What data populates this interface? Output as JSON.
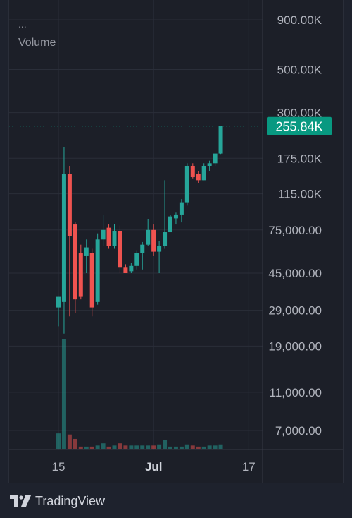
{
  "legend": {
    "ellipsis": "...",
    "label": "Volume"
  },
  "branding": {
    "logo_text": "TradingView"
  },
  "colors": {
    "up": "#26a69a",
    "down": "#ef5350",
    "price_tag_bg": "#089981",
    "background": "#1c1f28",
    "grid": "#2a2e39",
    "axis_text": "#b2b5be"
  },
  "chart_data": {
    "type": "candlestick",
    "title": "",
    "xlabel": "",
    "ylabel": "",
    "scale": "log",
    "ylim": [
      5500,
      1100000
    ],
    "grid": true,
    "current_price_label": "255.84K",
    "current_price_value": 255840,
    "y_ticks": [
      {
        "label": "900.00K",
        "value": 900000
      },
      {
        "label": "500.00K",
        "value": 500000
      },
      {
        "label": "300.00K",
        "value": 300000
      },
      {
        "label": "175.00K",
        "value": 175000
      },
      {
        "label": "115.00K",
        "value": 115000
      },
      {
        "label": "75,000.00",
        "value": 75000
      },
      {
        "label": "45,000.00",
        "value": 45000
      },
      {
        "label": "29,000.00",
        "value": 29000
      },
      {
        "label": "19,000.00",
        "value": 19000
      },
      {
        "label": "11,000.00",
        "value": 11000
      },
      {
        "label": "7,000.00",
        "value": 7000
      }
    ],
    "x_ticks": [
      {
        "label": "15",
        "index": 0,
        "bold": false
      },
      {
        "label": "Jul",
        "index": 17,
        "bold": true
      },
      {
        "label": "17",
        "index": 34,
        "bold": false
      }
    ],
    "candles": [
      {
        "o": 30000,
        "h": 34000,
        "l": 24000,
        "c": 34000,
        "v": 14
      },
      {
        "o": 32000,
        "h": 200000,
        "l": 22000,
        "c": 145000,
        "v": 100
      },
      {
        "o": 145000,
        "h": 160000,
        "l": 27000,
        "c": 70000,
        "v": 13
      },
      {
        "o": 80000,
        "h": 82000,
        "l": 28000,
        "c": 33000,
        "v": 9
      },
      {
        "o": 57000,
        "h": 63000,
        "l": 33000,
        "c": 34000,
        "v": 2
      },
      {
        "o": 55000,
        "h": 67000,
        "l": 45000,
        "c": 61000,
        "v": 2
      },
      {
        "o": 57000,
        "h": 60000,
        "l": 27000,
        "c": 30000,
        "v": 2
      },
      {
        "o": 32000,
        "h": 72000,
        "l": 31000,
        "c": 67000,
        "v": 3
      },
      {
        "o": 67000,
        "h": 90000,
        "l": 62000,
        "c": 75000,
        "v": 5
      },
      {
        "o": 77000,
        "h": 80000,
        "l": 60000,
        "c": 62000,
        "v": 2
      },
      {
        "o": 62000,
        "h": 80000,
        "l": 60000,
        "c": 74000,
        "v": 3
      },
      {
        "o": 74000,
        "h": 79000,
        "l": 45000,
        "c": 48000,
        "v": 5
      },
      {
        "o": 48000,
        "h": 50000,
        "l": 45000,
        "c": 45000,
        "v": 3
      },
      {
        "o": 46000,
        "h": 51000,
        "l": 45000,
        "c": 49000,
        "v": 3
      },
      {
        "o": 49000,
        "h": 59000,
        "l": 47000,
        "c": 57000,
        "v": 3
      },
      {
        "o": 57000,
        "h": 65000,
        "l": 47000,
        "c": 63000,
        "v": 3
      },
      {
        "o": 63000,
        "h": 85000,
        "l": 62000,
        "c": 75000,
        "v": 3
      },
      {
        "o": 75000,
        "h": 80000,
        "l": 55000,
        "c": 58000,
        "v": 3
      },
      {
        "o": 58000,
        "h": 66000,
        "l": 45000,
        "c": 62000,
        "v": 4
      },
      {
        "o": 62000,
        "h": 135000,
        "l": 60000,
        "c": 73000,
        "v": 8
      },
      {
        "o": 73000,
        "h": 90000,
        "l": 73000,
        "c": 88000,
        "v": 2
      },
      {
        "o": 86000,
        "h": 92000,
        "l": 80000,
        "c": 90000,
        "v": 2
      },
      {
        "o": 90000,
        "h": 108000,
        "l": 82000,
        "c": 104000,
        "v": 2
      },
      {
        "o": 104000,
        "h": 165000,
        "l": 100000,
        "c": 160000,
        "v": 4
      },
      {
        "o": 160000,
        "h": 165000,
        "l": 138000,
        "c": 140000,
        "v": 3
      },
      {
        "o": 145000,
        "h": 150000,
        "l": 130000,
        "c": 135000,
        "v": 2
      },
      {
        "o": 135000,
        "h": 165000,
        "l": 135000,
        "c": 160000,
        "v": 2
      },
      {
        "o": 160000,
        "h": 170000,
        "l": 150000,
        "c": 165000,
        "v": 3
      },
      {
        "o": 165000,
        "h": 185000,
        "l": 160000,
        "c": 185000,
        "v": 3
      },
      {
        "o": 185000,
        "h": 255840,
        "l": 184000,
        "c": 255840,
        "v": 4
      }
    ]
  }
}
